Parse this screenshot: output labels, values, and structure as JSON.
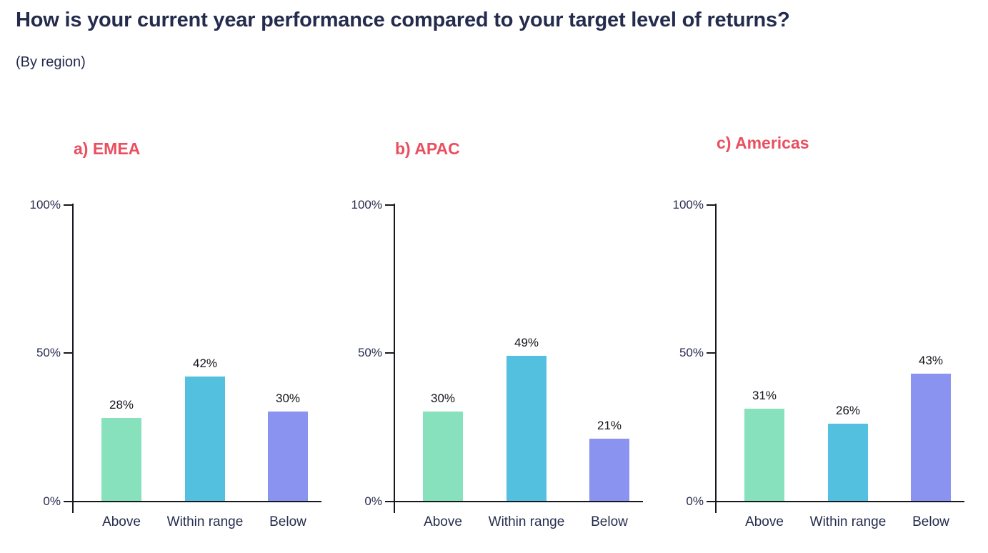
{
  "header": {
    "title": "How is your current year performance compared to your target level of returns?",
    "subtitle": "(By region)"
  },
  "colors": {
    "heading_text": "#242B4D",
    "chart_title_text": "#EA4E5F",
    "axis_line": "#17171F",
    "tick_label_text": "#262C4E",
    "category_label_text": "#262C4E",
    "value_label_text": "#15151D",
    "bar_colors": [
      "#87E1BD",
      "#54C0E0",
      "#8A93EF"
    ]
  },
  "chart_data": [
    {
      "type": "bar",
      "title": "a) EMEA",
      "region": "EMEA",
      "categories": [
        "Above",
        "Within range",
        "Below"
      ],
      "values": [
        28,
        42,
        30
      ],
      "value_labels": [
        "28%",
        "42%",
        "30%"
      ],
      "ylim": [
        0,
        100
      ],
      "yticks": [
        {
          "value": 0,
          "label": "0%"
        },
        {
          "value": 50,
          "label": "50%"
        },
        {
          "value": 100,
          "label": "100%"
        }
      ],
      "grid": false,
      "legend": false
    },
    {
      "type": "bar",
      "title": "b) APAC",
      "region": "APAC",
      "categories": [
        "Above",
        "Within range",
        "Below"
      ],
      "values": [
        30,
        49,
        21
      ],
      "value_labels": [
        "30%",
        "49%",
        "21%"
      ],
      "ylim": [
        0,
        100
      ],
      "yticks": [
        {
          "value": 0,
          "label": "0%"
        },
        {
          "value": 50,
          "label": "50%"
        },
        {
          "value": 100,
          "label": "100%"
        }
      ],
      "grid": false,
      "legend": false
    },
    {
      "type": "bar",
      "title": "c) Americas",
      "region": "Americas",
      "categories": [
        "Above",
        "Within range",
        "Below"
      ],
      "values": [
        31,
        26,
        43
      ],
      "value_labels": [
        "31%",
        "26%",
        "43%"
      ],
      "ylim": [
        0,
        100
      ],
      "yticks": [
        {
          "value": 0,
          "label": "0%"
        },
        {
          "value": 50,
          "label": "50%"
        },
        {
          "value": 100,
          "label": "100%"
        }
      ],
      "grid": false,
      "legend": false
    }
  ]
}
